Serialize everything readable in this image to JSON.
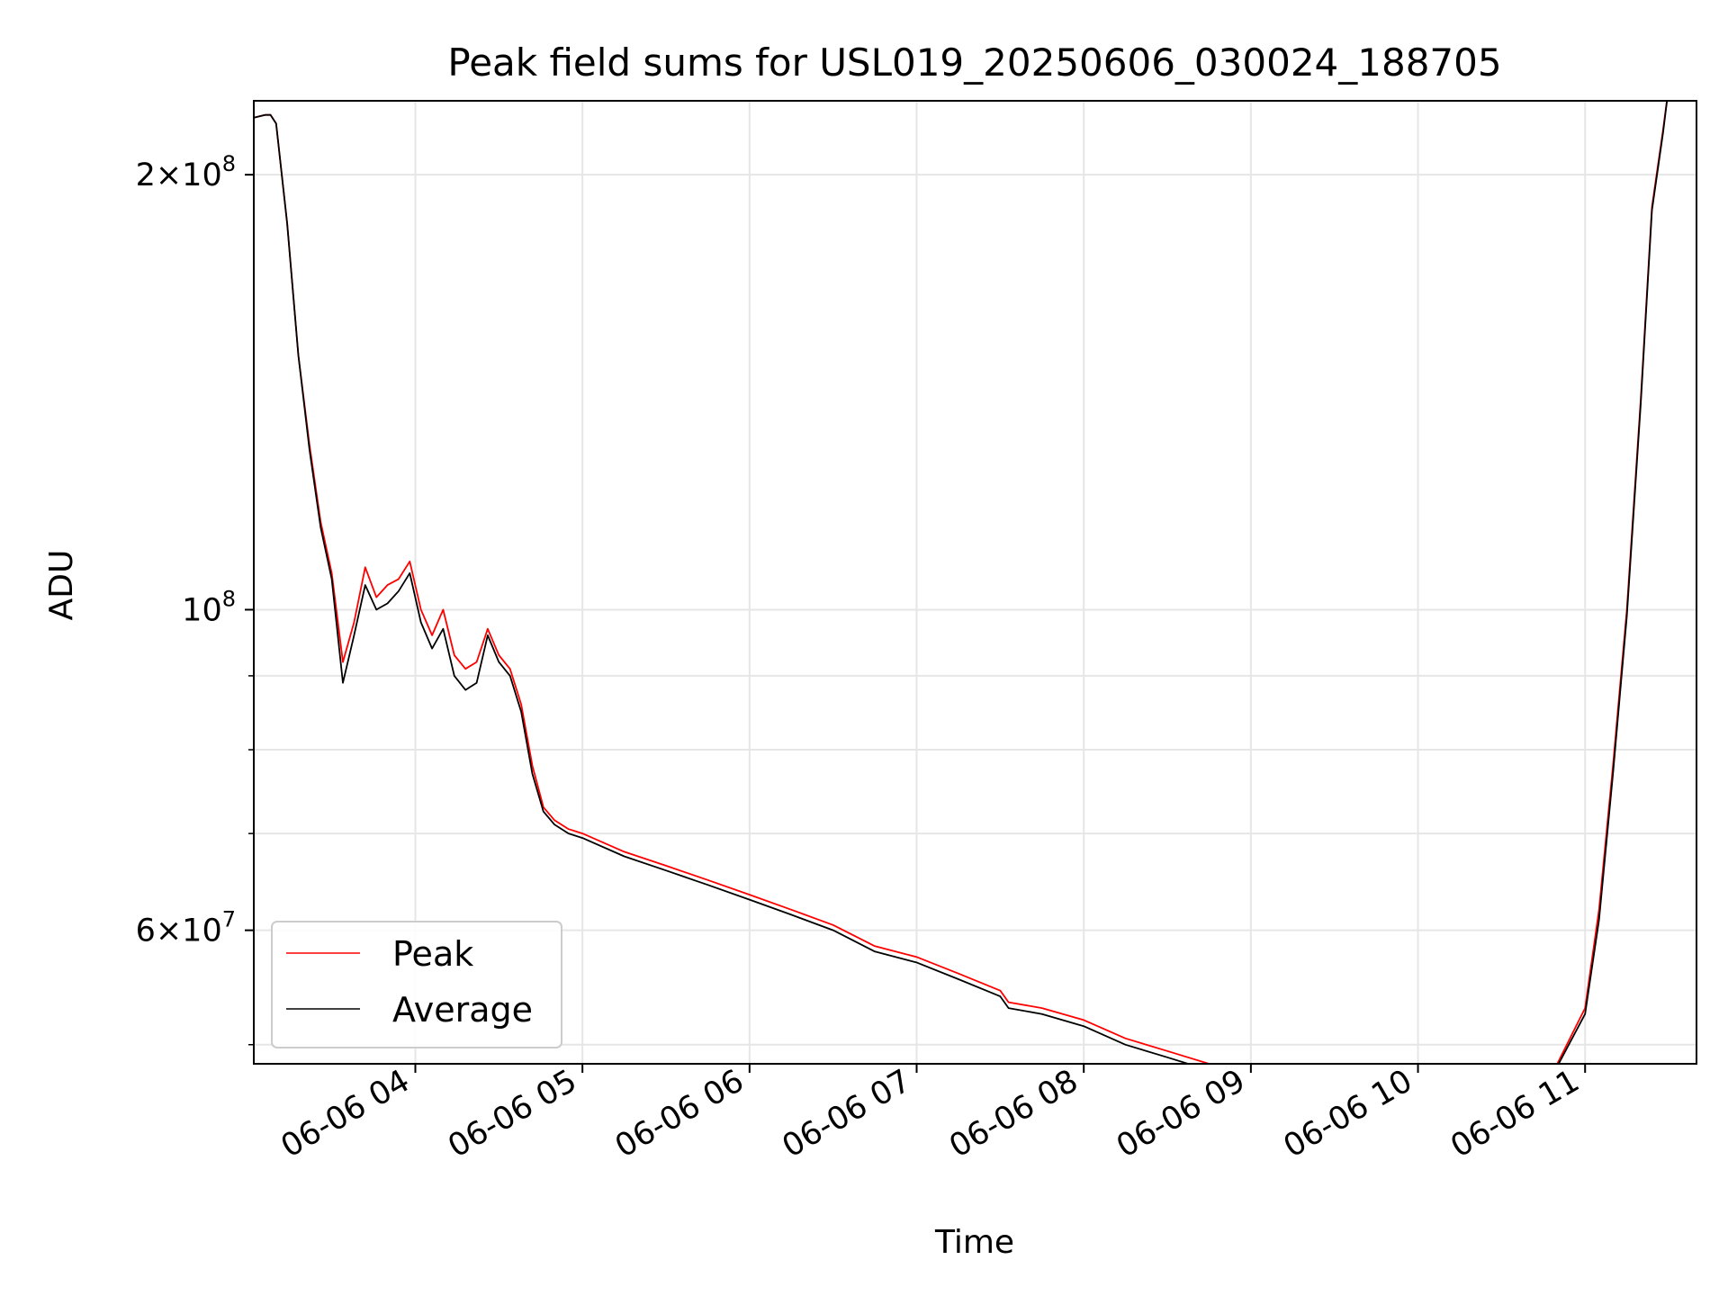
{
  "chart_data": {
    "type": "line",
    "title": "Peak field sums for USL019_20250606_030024_188705",
    "xlabel": "Time",
    "ylabel": "ADU",
    "y_scale": "log",
    "xlim": [
      "2025-06-06T03:02",
      "2025-06-06T11:40"
    ],
    "ylim": [
      48500000,
      225000000
    ],
    "grid": true,
    "legend": {
      "position": "lower left",
      "entries": [
        "Peak",
        "Average"
      ]
    },
    "x_tick_labels": [
      "06-06 04",
      "06-06 05",
      "06-06 06",
      "06-06 07",
      "06-06 08",
      "06-06 09",
      "06-06 10",
      "06-06 11"
    ],
    "x_ticks": [
      "2025-06-06T04:00",
      "2025-06-06T05:00",
      "2025-06-06T06:00",
      "2025-06-06T07:00",
      "2025-06-06T08:00",
      "2025-06-06T09:00",
      "2025-06-06T10:00",
      "2025-06-06T11:00"
    ],
    "y_tick_labels": [
      {
        "value": 200000000,
        "mantissa": "2",
        "exponent": "8"
      },
      {
        "value": 100000000,
        "mantissa": "",
        "exponent": "8"
      },
      {
        "value": 60000000,
        "mantissa": "6",
        "exponent": "7"
      }
    ],
    "y_minor_ticks": [
      50000000,
      70000000,
      80000000,
      90000000
    ],
    "x": [
      "2025-06-06T03:02",
      "2025-06-06T03:06",
      "2025-06-06T03:08",
      "2025-06-06T03:10",
      "2025-06-06T03:14",
      "2025-06-06T03:18",
      "2025-06-06T03:22",
      "2025-06-06T03:26",
      "2025-06-06T03:30",
      "2025-06-06T03:34",
      "2025-06-06T03:38",
      "2025-06-06T03:42",
      "2025-06-06T03:46",
      "2025-06-06T03:50",
      "2025-06-06T03:54",
      "2025-06-06T03:58",
      "2025-06-06T04:02",
      "2025-06-06T04:06",
      "2025-06-06T04:10",
      "2025-06-06T04:14",
      "2025-06-06T04:18",
      "2025-06-06T04:22",
      "2025-06-06T04:26",
      "2025-06-06T04:30",
      "2025-06-06T04:34",
      "2025-06-06T04:38",
      "2025-06-06T04:42",
      "2025-06-06T04:46",
      "2025-06-06T04:50",
      "2025-06-06T04:55",
      "2025-06-06T05:00",
      "2025-06-06T05:15",
      "2025-06-06T05:30",
      "2025-06-06T05:45",
      "2025-06-06T06:00",
      "2025-06-06T06:15",
      "2025-06-06T06:30",
      "2025-06-06T06:45",
      "2025-06-06T07:00",
      "2025-06-06T07:15",
      "2025-06-06T07:30",
      "2025-06-06T07:33",
      "2025-06-06T07:45",
      "2025-06-06T08:00",
      "2025-06-06T08:15",
      "2025-06-06T08:30",
      "2025-06-06T08:45",
      "2025-06-06T09:00",
      "2025-06-06T09:15",
      "2025-06-06T09:30",
      "2025-06-06T09:45",
      "2025-06-06T10:00",
      "2025-06-06T10:15",
      "2025-06-06T10:30",
      "2025-06-06T10:40",
      "2025-06-06T10:50",
      "2025-06-06T11:00",
      "2025-06-06T11:05",
      "2025-06-06T11:10",
      "2025-06-06T11:15",
      "2025-06-06T11:20",
      "2025-06-06T11:24",
      "2025-06-06T11:28",
      "2025-06-06T11:30"
    ],
    "series": [
      {
        "name": "Peak",
        "color": "#ff0000",
        "values": [
          219000000,
          220000000,
          220000000,
          217000000,
          185000000,
          150000000,
          130000000,
          115000000,
          106000000,
          92000000,
          98000000,
          107000000,
          102000000,
          104000000,
          105000000,
          108000000,
          100000000,
          96000000,
          100000000,
          93000000,
          91000000,
          92000000,
          97000000,
          93000000,
          91000000,
          86000000,
          78000000,
          73000000,
          71500000,
          70500000,
          70000000,
          68000000,
          66500000,
          65000000,
          63500000,
          62000000,
          60500000,
          58500000,
          57500000,
          56000000,
          54500000,
          53500000,
          53000000,
          52000000,
          50500000,
          49500000,
          48500000,
          47800000,
          47700000,
          47700000,
          47600000,
          47600000,
          47400000,
          47400000,
          47600000,
          48500000,
          53000000,
          62000000,
          78000000,
          100000000,
          140000000,
          190000000,
          215000000,
          230000000
        ]
      },
      {
        "name": "Average",
        "color": "#000000",
        "values": [
          219000000,
          220000000,
          220000000,
          217000000,
          185000000,
          150000000,
          129000000,
          114000000,
          105000000,
          89000000,
          96000000,
          104000000,
          100000000,
          101000000,
          103000000,
          106000000,
          98000000,
          94000000,
          97000000,
          90000000,
          88000000,
          89000000,
          96000000,
          92000000,
          90000000,
          85000000,
          77000000,
          72500000,
          71000000,
          70000000,
          69500000,
          67500000,
          66000000,
          64500000,
          63000000,
          61500000,
          60000000,
          58000000,
          57000000,
          55500000,
          54000000,
          53000000,
          52500000,
          51500000,
          50000000,
          49000000,
          48000000,
          47500000,
          47300000,
          47300000,
          47300000,
          47300000,
          47200000,
          47200000,
          47400000,
          48300000,
          52500000,
          61000000,
          77000000,
          99000000,
          139000000,
          189000000,
          214000000,
          230000000
        ]
      }
    ]
  }
}
